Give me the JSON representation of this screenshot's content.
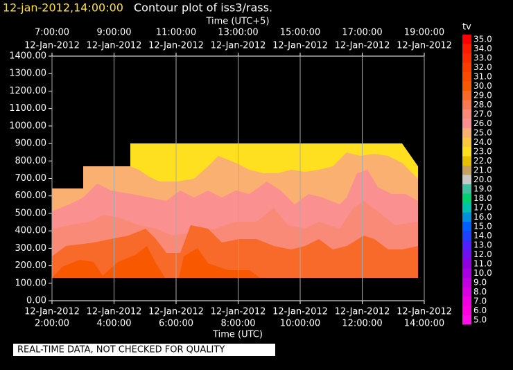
{
  "chart_data": {
    "type": "contour",
    "title_time": "12-jan-2012,14:00:00",
    "title": "Contour plot of iss3/rass.",
    "top_axis_label": "Time (UTC+5)",
    "x_axis_label": "Time (UTC)",
    "colorbar_label": "tv",
    "footer": "REAL-TIME DATA, NOT CHECKED FOR QUALITY",
    "top_xticks": [
      {
        "date": "12-Jan-2012",
        "time": "7:00:00"
      },
      {
        "date": "12-Jan-2012",
        "time": "9:00:00"
      },
      {
        "date": "12-Jan-2012",
        "time": "11:00:00"
      },
      {
        "date": "12-Jan-2012",
        "time": "13:00:00"
      },
      {
        "date": "12-Jan-2012",
        "time": "15:00:00"
      },
      {
        "date": "12-Jan-2012",
        "time": "17:00:00"
      },
      {
        "date": "12-Jan-2012",
        "time": "19:00:00"
      }
    ],
    "xticks": [
      {
        "date": "12-Jan-2012",
        "time": "2:00:00"
      },
      {
        "date": "12-Jan-2012",
        "time": "4:00:00"
      },
      {
        "date": "12-Jan-2012",
        "time": "6:00:00"
      },
      {
        "date": "12-Jan-2012",
        "time": "8:00:00"
      },
      {
        "date": "12-Jan-2012",
        "time": "10:00:00"
      },
      {
        "date": "12-Jan-2012",
        "time": "12:00:00"
      },
      {
        "date": "12-Jan-2012",
        "time": "14:00:00"
      }
    ],
    "ylim": [
      0,
      1400
    ],
    "yticks": [
      {
        "value": 0,
        "label": "0.00"
      },
      {
        "value": 100,
        "label": "100.00"
      },
      {
        "value": 200,
        "label": "200.00"
      },
      {
        "value": 300,
        "label": "300.00"
      },
      {
        "value": 400,
        "label": "400.00"
      },
      {
        "value": 500,
        "label": "500.00"
      },
      {
        "value": 600,
        "label": "600.00"
      },
      {
        "value": 700,
        "label": "700.00"
      },
      {
        "value": 800,
        "label": "800.00"
      },
      {
        "value": 900,
        "label": "900.00"
      },
      {
        "value": 1000,
        "label": "1000.00"
      },
      {
        "value": 1100,
        "label": "1100.00"
      },
      {
        "value": 1200,
        "label": "1200.00"
      },
      {
        "value": 1300,
        "label": "1300.00"
      },
      {
        "value": 1400,
        "label": "1400.00"
      }
    ],
    "grid": true,
    "levels": [
      {
        "value": 35,
        "label": "35.0",
        "color": "#ff0000"
      },
      {
        "value": 34,
        "label": "34.0",
        "color": "#ff1a00"
      },
      {
        "value": 33,
        "label": "33.0",
        "color": "#ff2b00"
      },
      {
        "value": 32,
        "label": "32.0",
        "color": "#fd3c00"
      },
      {
        "value": 31,
        "label": "31.0",
        "color": "#fa4a00"
      },
      {
        "value": 30,
        "label": "30.0",
        "color": "#f85800"
      },
      {
        "value": 29,
        "label": "29.0",
        "color": "#f86a2a"
      },
      {
        "value": 28,
        "label": "28.0",
        "color": "#f97a50"
      },
      {
        "value": 27,
        "label": "27.0",
        "color": "#fa8a78"
      },
      {
        "value": 26,
        "label": "26.0",
        "color": "#fb9090"
      },
      {
        "value": 25,
        "label": "25.0",
        "color": "#f9b070"
      },
      {
        "value": 24,
        "label": "24.0",
        "color": "#fcc840"
      },
      {
        "value": 23,
        "label": "23.0",
        "color": "#ffe020"
      },
      {
        "value": 22,
        "label": "22.0",
        "color": "#e6c000"
      },
      {
        "value": 21,
        "label": "21.0",
        "color": "#c8a060"
      },
      {
        "value": 20,
        "label": "20.0",
        "color": "#c8c8c8"
      },
      {
        "value": 19,
        "label": "19.0",
        "color": "#40c0a0"
      },
      {
        "value": 18,
        "label": "18.0",
        "color": "#00d070"
      },
      {
        "value": 17,
        "label": "17.0",
        "color": "#00c0b0"
      },
      {
        "value": 16,
        "label": "16.0",
        "color": "#0090e0"
      },
      {
        "value": 15,
        "label": "15.0",
        "color": "#0060ff"
      },
      {
        "value": 14,
        "label": "14.0",
        "color": "#2040ff"
      },
      {
        "value": 13,
        "label": "13.0",
        "color": "#5020ff"
      },
      {
        "value": 12,
        "label": "12.0",
        "color": "#7010f0"
      },
      {
        "value": 11,
        "label": "11.0",
        "color": "#9000e0"
      },
      {
        "value": 10,
        "label": "10.0",
        "color": "#a800e0"
      },
      {
        "value": 9,
        "label": "9.0",
        "color": "#c000e0"
      },
      {
        "value": 8,
        "label": "8.0",
        "color": "#d800e0"
      },
      {
        "value": 7,
        "label": "7.0",
        "color": "#f000e0"
      },
      {
        "value": 6,
        "label": "6.0",
        "color": "#ff00e0"
      },
      {
        "value": 5,
        "label": "5.0",
        "color": "#ff10e8"
      }
    ]
  }
}
